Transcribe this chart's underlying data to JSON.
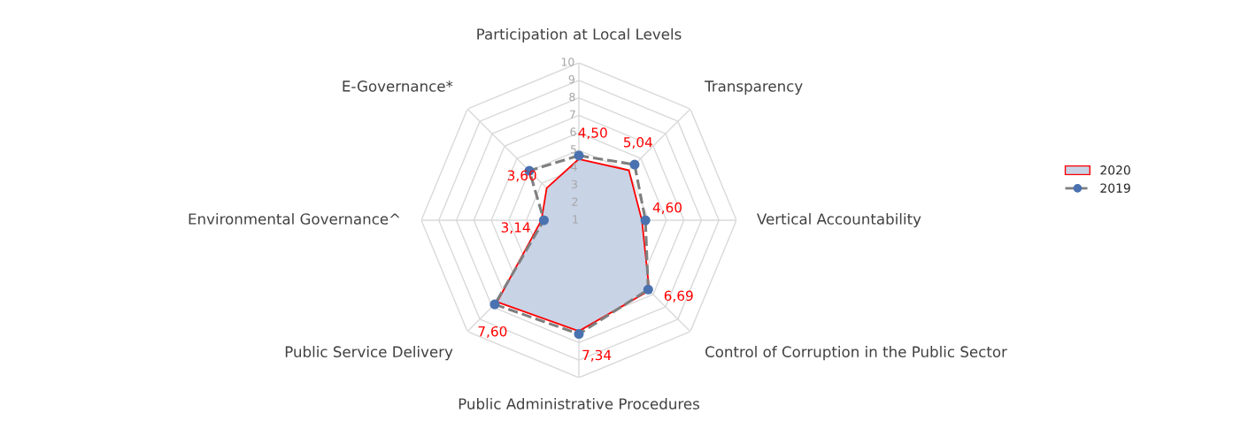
{
  "chart_data": {
    "type": "radar",
    "categories": [
      "Participation at Local Levels",
      "Transparency",
      "Vertical Accountability",
      "Control of Corruption in the Public Sector",
      "Public Administrative Procedures",
      "Public Service Delivery",
      "Environmental Governance^",
      "E-Governance*"
    ],
    "series": [
      {
        "name": "2020",
        "color": "#ff0000",
        "values": [
          4.5,
          5.04,
          4.6,
          6.69,
          7.34,
          7.6,
          3.14,
          3.6
        ],
        "value_labels": [
          "4,50",
          "5,04",
          "4,60",
          "6,69",
          "7,34",
          "7,60",
          "3,14",
          "3,60"
        ]
      },
      {
        "name": "2019",
        "color": "#7f7f7f",
        "marker": "circle",
        "line_style": "dashed",
        "values": [
          4.7,
          5.5,
          4.8,
          6.6,
          7.5,
          7.8,
          3.0,
          5.0
        ]
      }
    ],
    "ylim": [
      1,
      10
    ],
    "yticks": [
      1,
      2,
      3,
      4,
      5,
      6,
      7,
      8,
      9,
      10
    ],
    "grid": true,
    "legend": "right"
  }
}
